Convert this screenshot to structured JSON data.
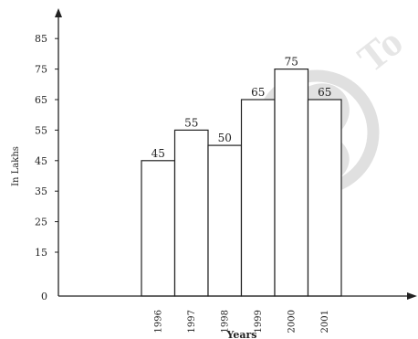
{
  "chart_data": {
    "type": "bar",
    "categories": [
      "1996",
      "1997",
      "1998",
      "1999",
      "2000",
      "2001"
    ],
    "values": [
      45,
      55,
      50,
      65,
      75,
      65
    ],
    "data_labels": [
      "45",
      "55",
      "50",
      "65",
      "75",
      "65"
    ],
    "title": "",
    "xlabel": "Years",
    "ylabel": "In Lakhs",
    "yticks": [
      0,
      15,
      25,
      35,
      45,
      55,
      65,
      75,
      85
    ],
    "ytick_labels": [
      "0",
      "15",
      "25",
      "35",
      "45",
      "55",
      "65",
      "75",
      "85"
    ],
    "ylim": [
      0,
      95
    ],
    "grid": false,
    "legend": "none"
  },
  "colors": {
    "axis": "#222222",
    "bar_fill": "#ffffff",
    "bar_stroke": "#222222",
    "watermark": "#cfcfcf"
  },
  "watermark": {
    "icon": "watermark-logo-icon",
    "text": "To"
  }
}
